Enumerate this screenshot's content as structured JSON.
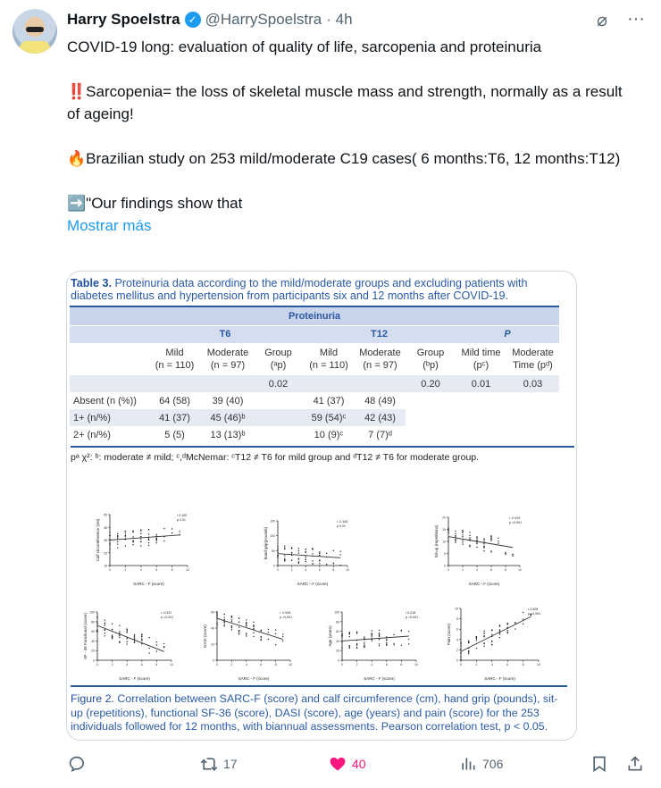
{
  "tweet": {
    "author_name": "Harry Spoelstra",
    "handle": "@HarrySpoelstra",
    "time": "· 4h",
    "lines": [
      "COVID-19 long: evaluation of quality of life, sarcopenia and proteinuria",
      "",
      "‼️Sarcopenia= the loss of skeletal muscle mass and strength, normally as a result of ageing!",
      "",
      "🔥Brazilian study on 253 mild/moderate C19 cases( 6 months:T6, 12 months:T12)",
      "",
      "➡️\"Our findings show that"
    ],
    "show_more": "Mostrar más"
  },
  "table": {
    "caption_bold": "Table 3.",
    "caption": " Proteinuria data according to the mild/moderate groups and excluding patients with diabetes mellitus and hypertension from participants six and 12 months after COVID-19.",
    "group_header": "Proteinuria",
    "periods": [
      "T6",
      "T12",
      "P"
    ],
    "col_headers": [
      [
        "Mild",
        "(n = 110)"
      ],
      [
        "Moderate",
        "(n = 97)"
      ],
      [
        "Group",
        "(ᵃp)"
      ],
      [
        "Mild",
        "(n = 110)"
      ],
      [
        "Moderate",
        "(n = 97)"
      ],
      [
        "Group",
        "(ᵇp)"
      ],
      [
        "Mild time",
        "(pᶜ)"
      ],
      [
        "Moderate",
        "Time (pᵈ)"
      ]
    ],
    "pvalues": [
      "",
      "",
      "0.02",
      "",
      "",
      "0.20",
      "0.01",
      "0.03"
    ],
    "rows": [
      {
        "label": "Absent (n (%))",
        "cells": [
          "64 (58)",
          "39 (40)",
          "",
          "41 (37)",
          "48 (49)",
          "",
          "",
          ""
        ]
      },
      {
        "label": "1+ (n/%)",
        "cells": [
          "41 (37)",
          "45 (46)ᵇ",
          "",
          "59 (54)ᶜ",
          "42 (43)",
          "",
          "",
          ""
        ]
      },
      {
        "label": "2+ (n/%)",
        "cells": [
          "5 (5)",
          "13 (13)ᵇ",
          "",
          "10 (9)ᶜ",
          "7 (7)ᵈ",
          "",
          "",
          ""
        ]
      }
    ],
    "footnote": "pᵃ χ²: ᵇ: moderate ≠ mild; ᶜ,ᵈMcNemar: ᶜT12 ≠ T6 for mild group and ᵈT12 ≠ T6 for moderate group."
  },
  "figure": {
    "caption_bold": "Figure 2.",
    "caption": " Correlation between SARC-F (score) and calf circumference (cm), hand grip (pounds), sit-up (repetitions), functional SF-36 (score), DASI (score), age (years) and pain (score) for the 253 individuals followed for 12 months, with biannual assessments. Pearson correlation test, p < 0.05.",
    "plots": [
      {
        "ylabel": "Calf circumference (cm)",
        "xlabel": "SARC - F (score)",
        "r": "r 0.182",
        "p": "p 0.01",
        "yticks": [
          15,
          25,
          35,
          45,
          55
        ],
        "xticks": [
          0,
          2,
          4,
          6,
          8,
          10
        ],
        "trend": [
          35,
          39
        ]
      },
      {
        "ylabel": "hand grip(pounds)",
        "xlabel": "SARC - F (score)",
        "r": "r -0.184",
        "p": "p 0.01",
        "yticks": [
          0,
          50,
          100,
          150
        ],
        "xticks": [
          0,
          2,
          4,
          6,
          8,
          10
        ],
        "trend": [
          40,
          26
        ]
      },
      {
        "ylabel": "Sit-up (repetitions)",
        "xlabel": "SARC - F (score)",
        "r": "r -0.419",
        "p": "p <0.001",
        "yticks": [
          0,
          5,
          10,
          15,
          20
        ],
        "xticks": [
          0,
          2,
          4,
          6,
          8,
          10
        ],
        "trend": [
          12,
          7.5
        ]
      },
      {
        "ylabel": "SF - 36 Functional (score)",
        "xlabel": "SARC - F (score)",
        "r": "r -0.537",
        "p": "p <0.001",
        "yticks": [
          0,
          20,
          40,
          60,
          80,
          100
        ],
        "xticks": [
          0,
          2,
          4,
          6,
          8,
          10
        ],
        "trend": [
          72,
          18
        ]
      },
      {
        "ylabel": "DASI (score)",
        "xlabel": "SARC - F (score)",
        "r": "r -0.526",
        "p": "p <0.001",
        "yticks": [
          0,
          20,
          40,
          60
        ],
        "xticks": [
          0,
          2,
          4,
          6,
          8,
          10
        ],
        "trend": [
          52,
          26
        ]
      },
      {
        "ylabel": "Age (years)",
        "xlabel": "SARC - F (score)",
        "r": "r 0.218",
        "p": "p <0.001",
        "yticks": [
          0,
          20,
          40,
          60,
          80,
          100
        ],
        "xticks": [
          0,
          2,
          4,
          6,
          8,
          10
        ],
        "trend": [
          40,
          50
        ]
      },
      {
        "ylabel": "Pain (score)",
        "xlabel": "SARC - F (score)",
        "r": "r 0.528",
        "p": "p <0.001",
        "yticks": [
          0,
          2,
          4,
          6,
          8,
          10
        ],
        "xticks": [
          0,
          2,
          4,
          6,
          8,
          10
        ],
        "trend": [
          1.7,
          8.4
        ]
      }
    ]
  },
  "actions": {
    "replies": "",
    "reposts": "17",
    "likes": "40",
    "views": "706",
    "like_color": "#f91880",
    "accent": "#1d9bf0"
  }
}
